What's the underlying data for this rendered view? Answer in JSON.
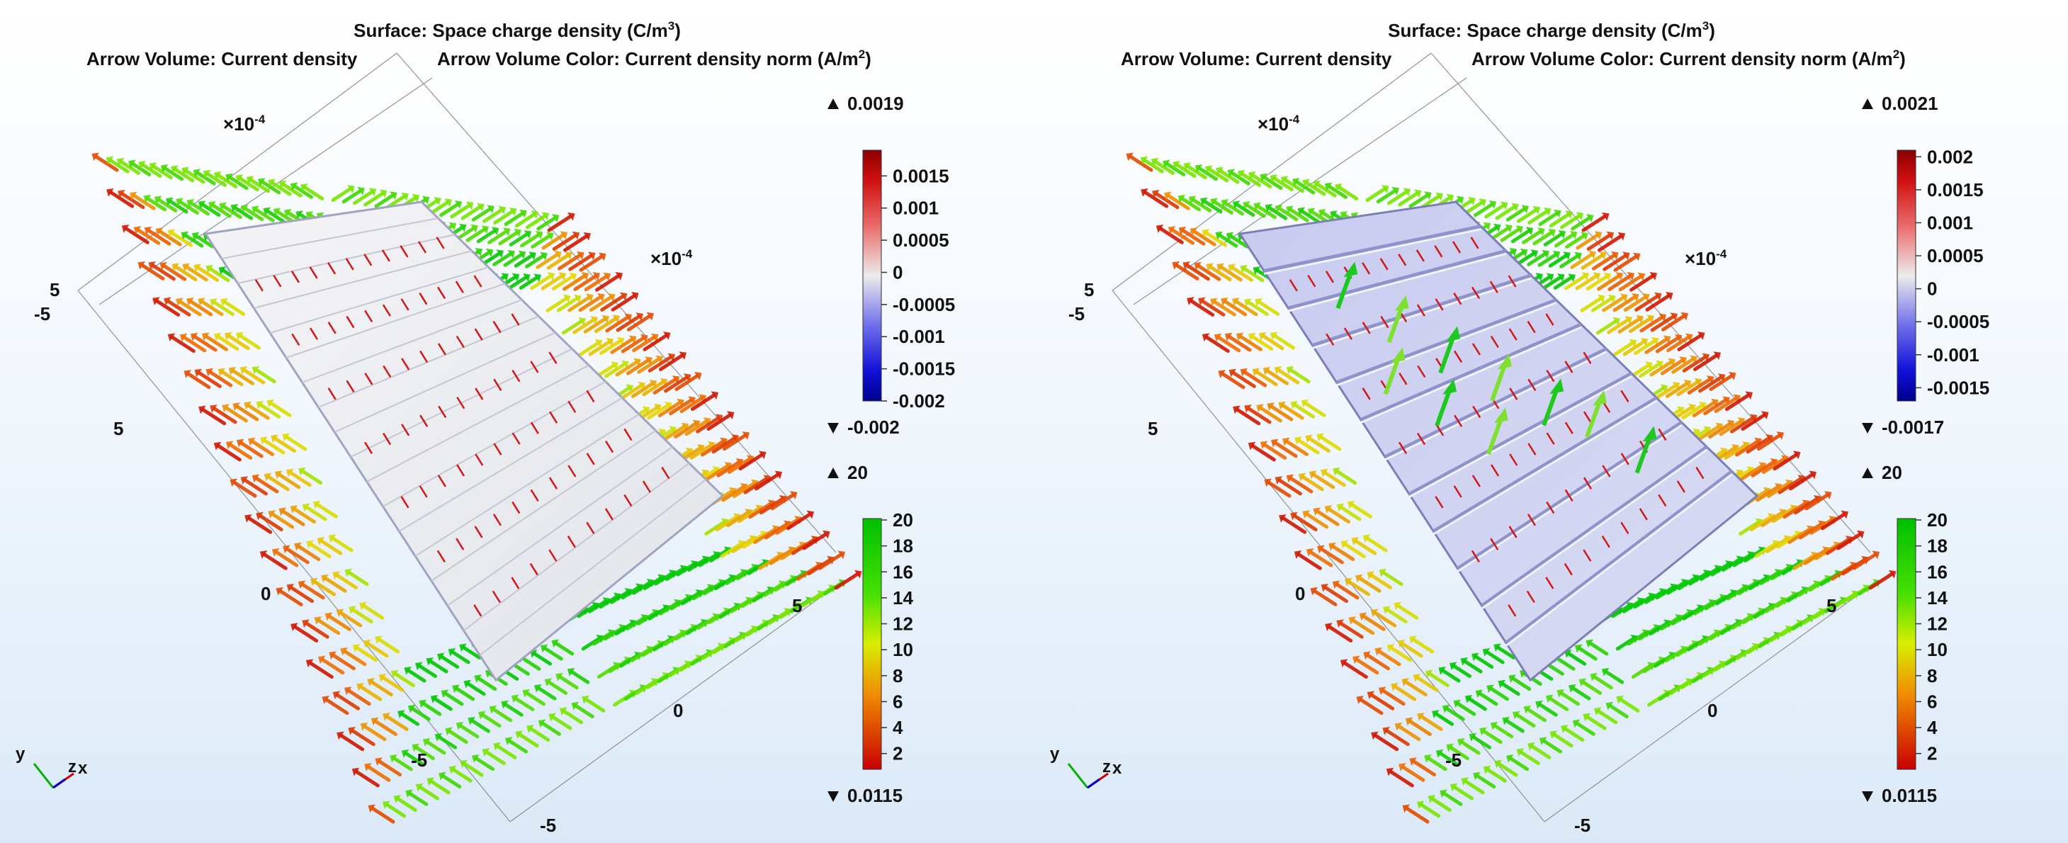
{
  "chart_data": [
    {
      "type": "heatmap",
      "title_lines": [
        "Surface: Space charge density (C/m3)",
        "Arrow Volume: Current density",
        "Arrow Volume Color: Current density norm (A/m2)"
      ],
      "surface_title": "Surface: Space charge density (C/m",
      "arrow_volume_label": "Arrow Volume: Current density",
      "arrow_color_label": "Arrow Volume Color: Current density norm (A/m",
      "axis_multiplier_base": "×10",
      "axis_multiplier_exp": "-4",
      "axis_ticks": {
        "y_left": [
          "5",
          "-5",
          "5",
          "0",
          "-5"
        ],
        "x_bottom": [
          "0",
          "5"
        ],
        "z_bottom": [
          "-5"
        ]
      },
      "axis_triad": [
        "y",
        "z",
        "x"
      ],
      "surface_legend": {
        "max_label": "0.0019",
        "min_label": "-0.002",
        "ticks": [
          "0.0015",
          "0.001",
          "0.0005",
          "0",
          "-0.0005",
          "-0.001",
          "-0.0015",
          "-0.002"
        ],
        "range": [
          -0.002,
          0.0019
        ]
      },
      "arrow_legend": {
        "max_label": "20",
        "min_label": "0.0115",
        "ticks": [
          "20",
          "18",
          "16",
          "14",
          "12",
          "10",
          "8",
          "6",
          "4",
          "2"
        ],
        "range": [
          0.0115,
          20
        ]
      },
      "inner_style": "white"
    },
    {
      "type": "heatmap",
      "title_lines": [
        "Surface: Space charge density (C/m3)",
        "Arrow Volume: Current density",
        "Arrow Volume Color: Current density norm (A/m2)"
      ],
      "surface_title": "Surface: Space charge density (C/m",
      "arrow_volume_label": "Arrow Volume: Current density",
      "arrow_color_label": "Arrow Volume Color: Current density norm (A/m",
      "axis_multiplier_base": "×10",
      "axis_multiplier_exp": "-4",
      "axis_ticks": {
        "y_left": [
          "5",
          "-5",
          "5",
          "0",
          "-5"
        ],
        "x_bottom": [
          "0",
          "5"
        ],
        "z_bottom": [
          "-5"
        ]
      },
      "axis_triad": [
        "y",
        "z",
        "x"
      ],
      "surface_legend": {
        "max_label": "0.0021",
        "min_label": "-0.0017",
        "ticks": [
          "0.002",
          "0.0015",
          "0.001",
          "0.0005",
          "0",
          "-0.0005",
          "-0.001",
          "-0.0015"
        ],
        "range": [
          -0.0017,
          0.0021
        ]
      },
      "arrow_legend": {
        "max_label": "20",
        "min_label": "0.0115",
        "ticks": [
          "20",
          "18",
          "16",
          "14",
          "12",
          "10",
          "8",
          "6",
          "4",
          "2"
        ],
        "range": [
          0.0115,
          20
        ]
      },
      "inner_style": "striped"
    }
  ]
}
